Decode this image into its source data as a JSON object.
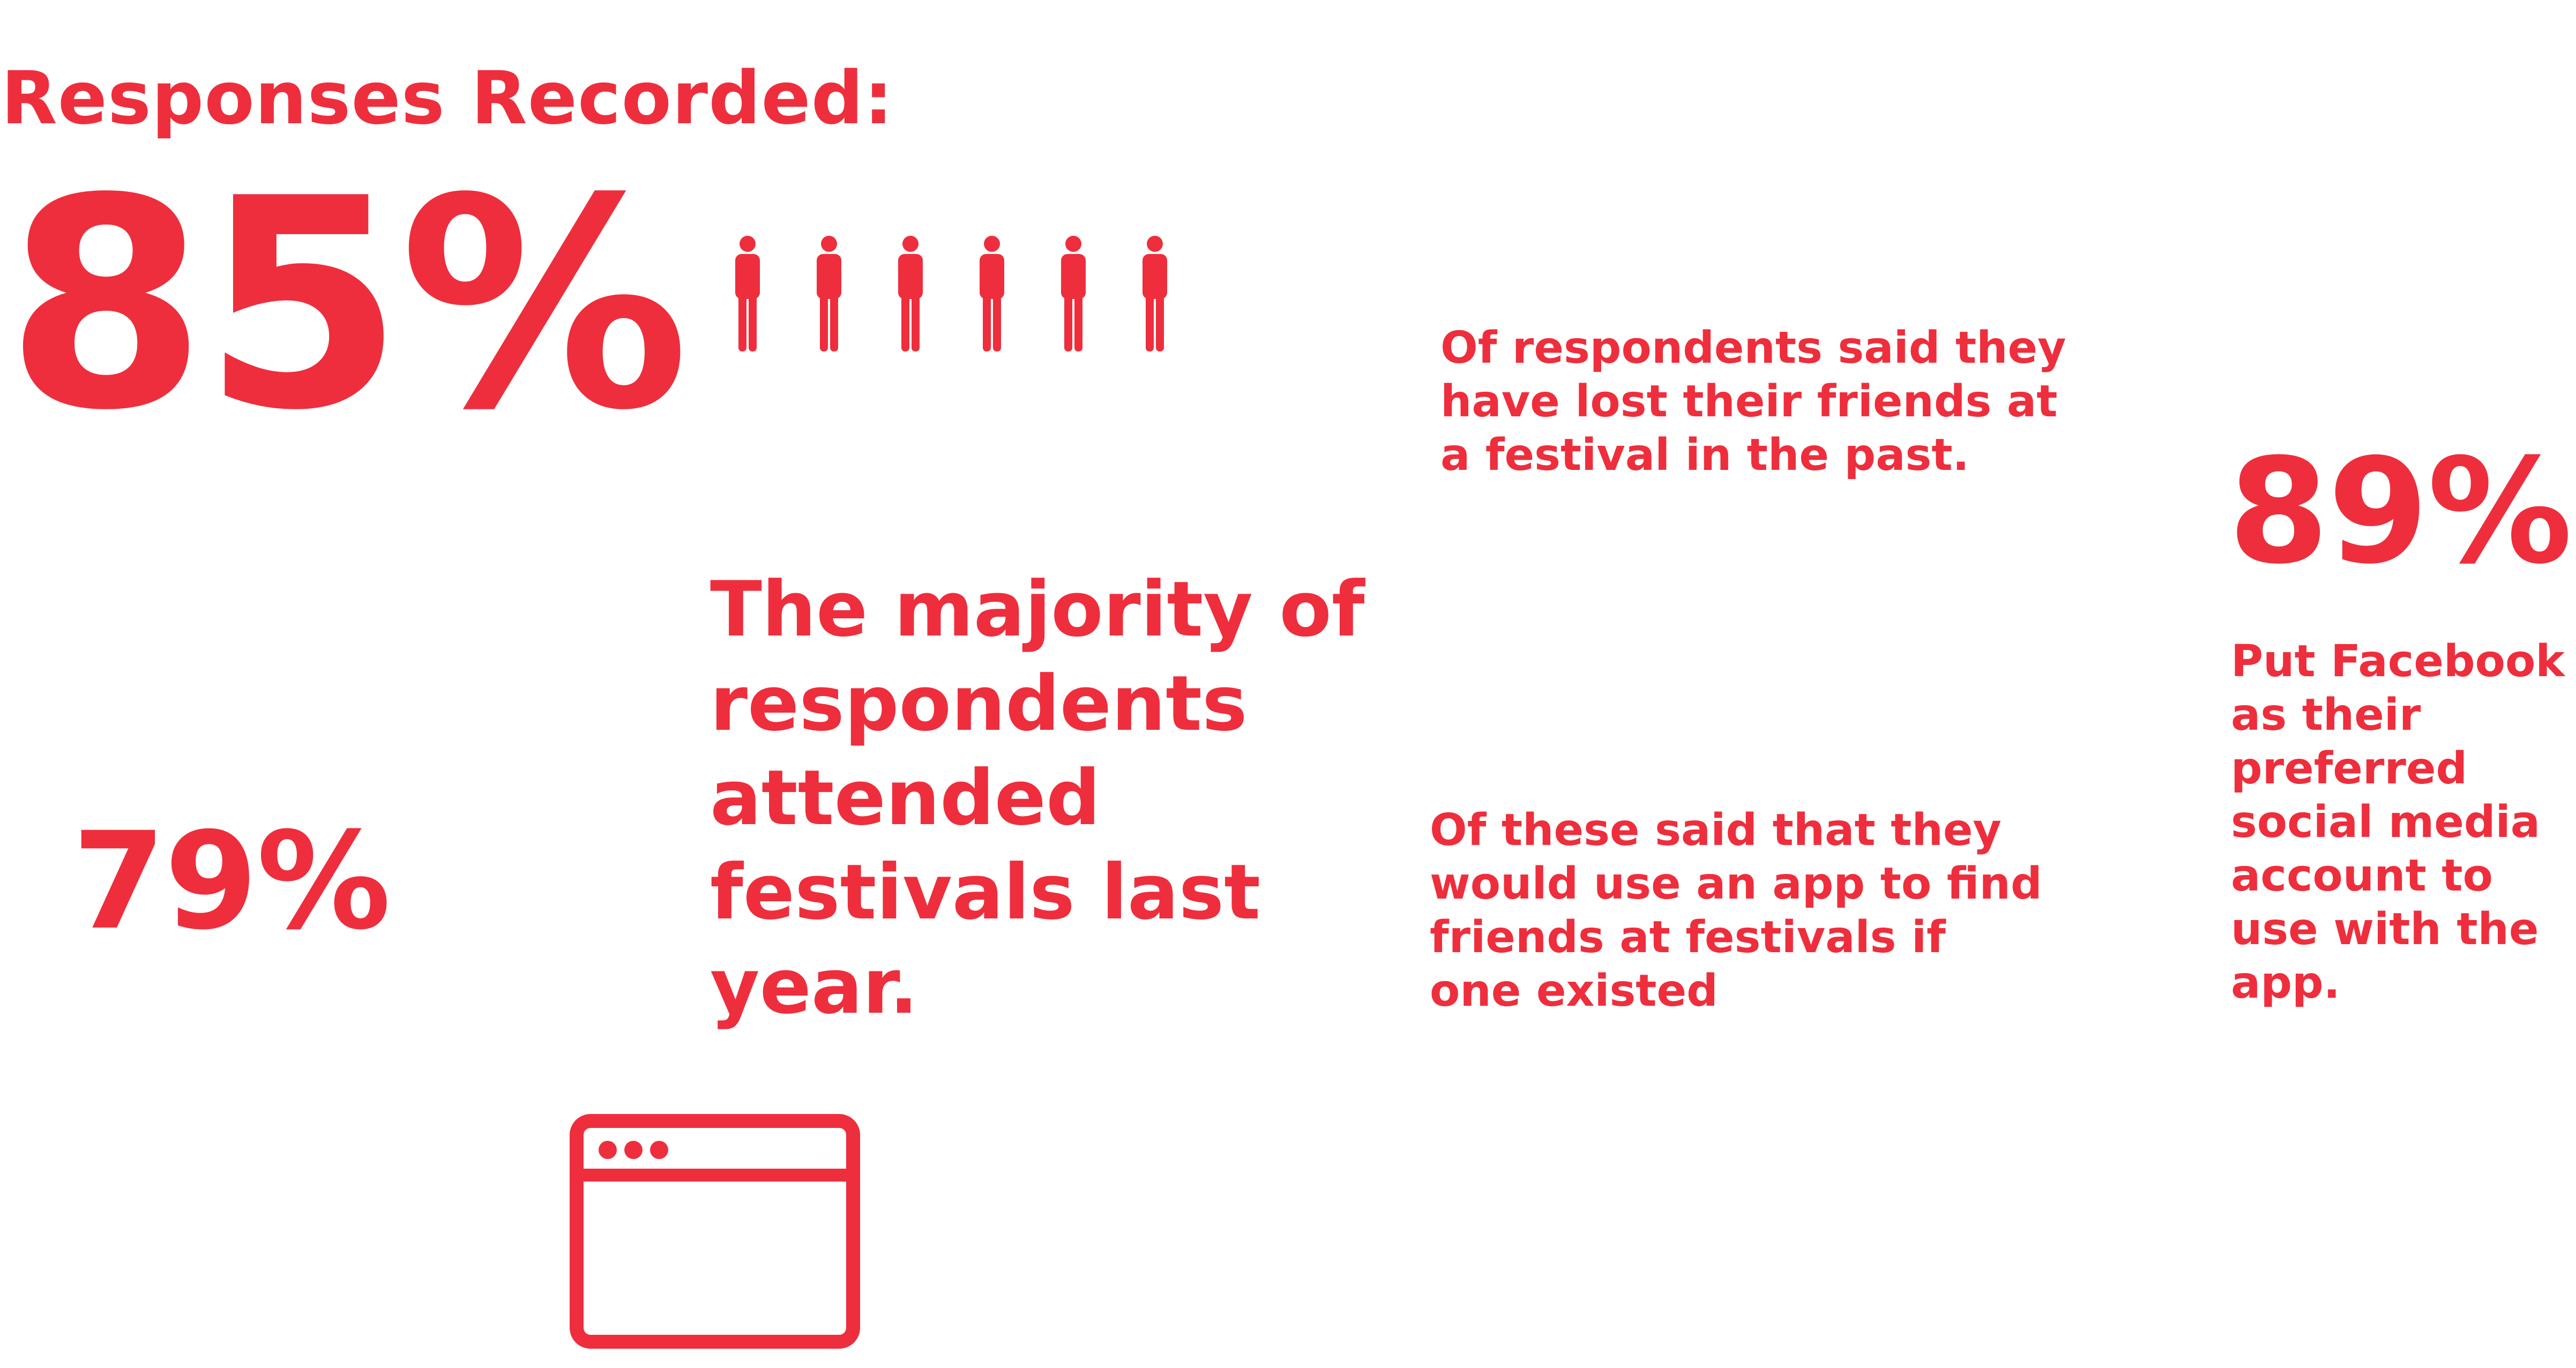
{
  "header": {
    "title": "Responses Recorded:"
  },
  "stats": {
    "lost_friends": {
      "value": "85%",
      "description": "Of respondents said they have lost their friends at a festival in the past."
    },
    "attended": {
      "description": "The majority of respondents attended festivals last year."
    },
    "use_app": {
      "value": "79%",
      "description": "Of these said that they would use an app to find friends at festivals if one existed"
    },
    "facebook": {
      "value": "89%",
      "description": "Put Facebook as their preferred social media account to use with the app."
    }
  },
  "icons": {
    "people_count": 6,
    "person_icon": "person-icon",
    "browser_icon": "browser-window-icon"
  },
  "colors": {
    "accent": "#ee2e3c",
    "background": "#ffffff"
  }
}
